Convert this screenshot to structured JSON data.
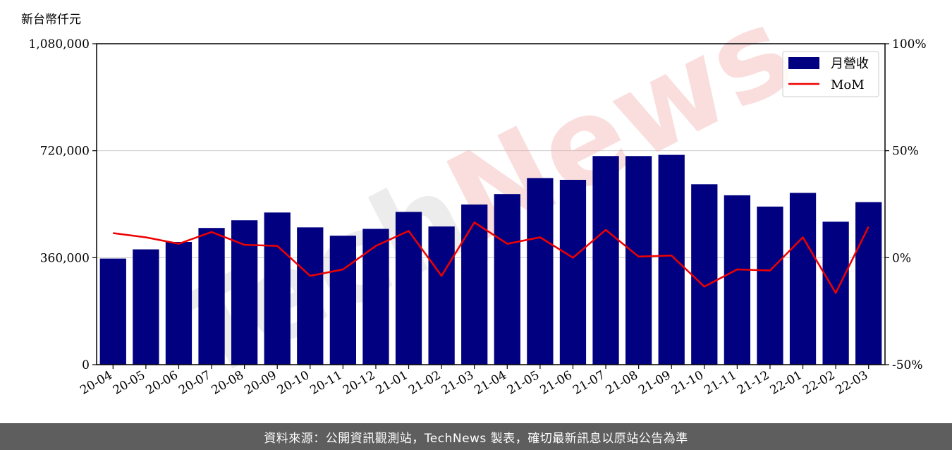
{
  "chart_data": {
    "type": "bar",
    "unit_label": "新台幣仟元",
    "categories": [
      "20-04",
      "20-05",
      "20-06",
      "20-07",
      "20-08",
      "20-09",
      "20-10",
      "20-11",
      "20-12",
      "21-01",
      "21-02",
      "21-03",
      "21-04",
      "21-05",
      "21-06",
      "21-07",
      "21-08",
      "21-09",
      "21-10",
      "21-11",
      "21-12",
      "22-01",
      "22-02",
      "22-03"
    ],
    "series": [
      {
        "name": "月營收",
        "type": "bar",
        "axis": "left",
        "color": "#000080",
        "values": [
          357000,
          388000,
          413000,
          460000,
          486000,
          512000,
          462000,
          434000,
          457000,
          514000,
          465000,
          539000,
          574000,
          628000,
          622000,
          702000,
          702000,
          706000,
          607000,
          570000,
          532000,
          578000,
          481000,
          547000
        ]
      },
      {
        "name": "MoM",
        "type": "line",
        "axis": "right",
        "color": "#ee0000",
        "values": [
          11.5,
          9.5,
          6.5,
          12.0,
          6.0,
          5.5,
          -8.5,
          -5.5,
          5.5,
          12.5,
          -8.5,
          16.5,
          6.5,
          9.5,
          0.0,
          13.0,
          0.5,
          1.0,
          -13.5,
          -5.5,
          -6.0,
          9.5,
          -16.5,
          14.5
        ]
      }
    ],
    "y_left": {
      "min": 0,
      "max": 1080000,
      "ticks": [
        0,
        360000,
        720000,
        1080000
      ],
      "tick_labels": [
        "0",
        "360,000",
        "720,000",
        "1,080,000"
      ]
    },
    "y_right": {
      "min": -50,
      "max": 100,
      "ticks": [
        -50,
        0,
        50,
        100
      ],
      "tick_labels": [
        "-50%",
        "0%",
        "50%",
        "100%"
      ]
    },
    "grid": "horizontal",
    "legend_position": "top-right",
    "watermark": "TechNews"
  },
  "footer": {
    "text": "資料來源：公開資訊觀測站，TechNews 製表，確切最新訊息以原站公告為準"
  }
}
